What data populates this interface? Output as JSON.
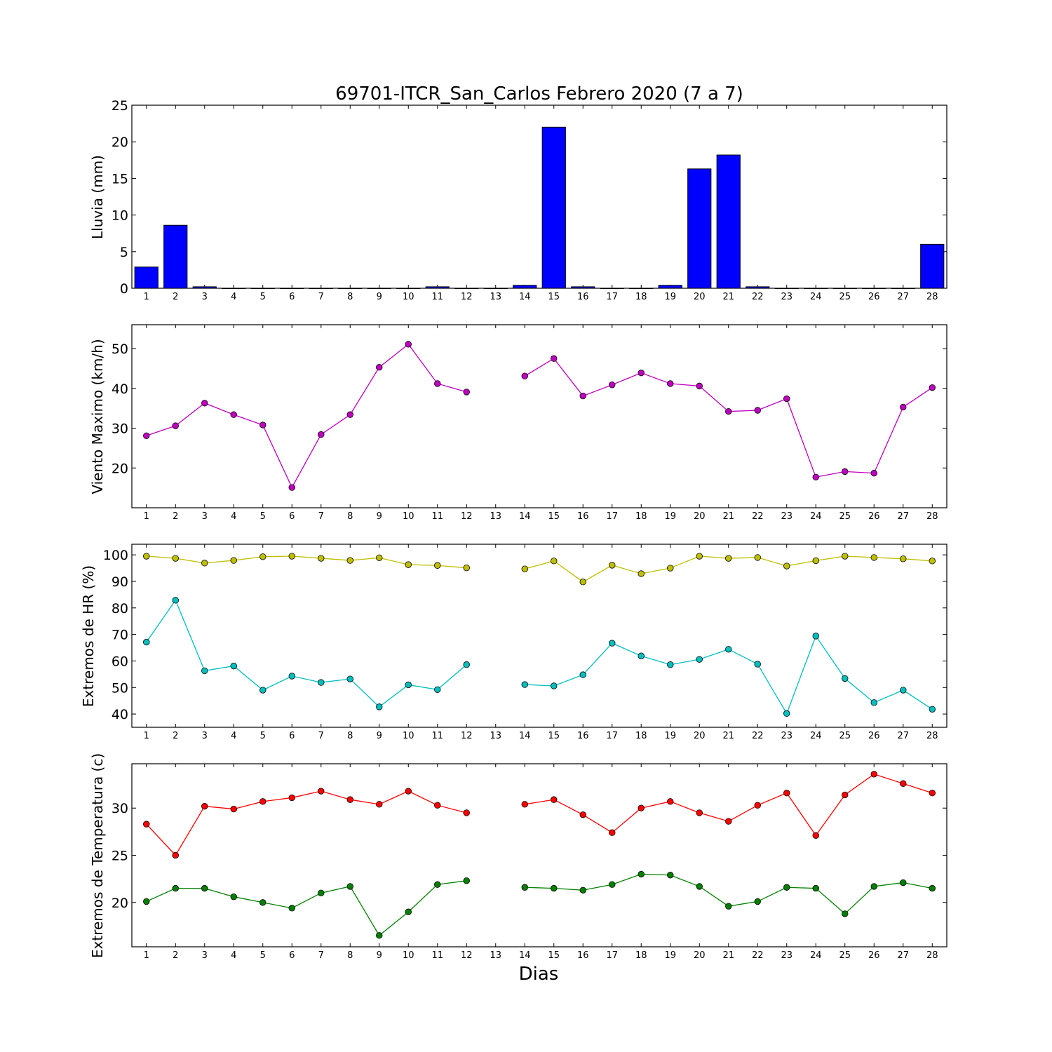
{
  "title": "69701-ITCR_San_Carlos Febrero 2020  (7 a 7)",
  "xlabel": "Dias",
  "chart_data": [
    {
      "type": "bar",
      "ylabel": "Lluvia (mm)",
      "x": [
        1,
        2,
        3,
        4,
        5,
        6,
        7,
        8,
        9,
        10,
        11,
        12,
        13,
        14,
        15,
        16,
        17,
        18,
        19,
        20,
        21,
        22,
        23,
        24,
        25,
        26,
        27,
        28
      ],
      "ylim": [
        0,
        25
      ],
      "yticks": [
        0,
        5,
        10,
        15,
        20,
        25
      ],
      "color": "#0000ff",
      "values": [
        2.9,
        8.6,
        0.2,
        0,
        0,
        0,
        0,
        0,
        0,
        0,
        0.2,
        0,
        0,
        0.4,
        22.0,
        0.2,
        0,
        0,
        0.4,
        16.3,
        18.2,
        0.2,
        0,
        0,
        0,
        0,
        0,
        6.0
      ]
    },
    {
      "type": "line",
      "ylabel": "Viento Maximo (km/h)",
      "x": [
        1,
        2,
        3,
        4,
        5,
        6,
        7,
        8,
        9,
        10,
        11,
        12,
        13,
        14,
        15,
        16,
        17,
        18,
        19,
        20,
        21,
        22,
        23,
        24,
        25,
        26,
        27,
        28
      ],
      "ylim": [
        10,
        56
      ],
      "yticks": [
        20,
        30,
        40,
        50
      ],
      "series": [
        {
          "color": "#bf00bf",
          "values": [
            28.1,
            30.6,
            36.3,
            33.4,
            30.8,
            15.1,
            28.4,
            33.4,
            45.3,
            51.1,
            41.2,
            39.1,
            null,
            43.1,
            47.5,
            38.1,
            40.9,
            43.9,
            41.2,
            40.6,
            34.2,
            34.5,
            37.4,
            17.7,
            19.1,
            18.7,
            35.3,
            40.2
          ]
        }
      ]
    },
    {
      "type": "line",
      "ylabel": "Extremos de HR (%)",
      "x": [
        1,
        2,
        3,
        4,
        5,
        6,
        7,
        8,
        9,
        10,
        11,
        12,
        13,
        14,
        15,
        16,
        17,
        18,
        19,
        20,
        21,
        22,
        23,
        24,
        25,
        26,
        27,
        28
      ],
      "ylim": [
        35,
        104
      ],
      "yticks": [
        40,
        50,
        60,
        70,
        80,
        90,
        100
      ],
      "series": [
        {
          "color": "#bfbf00",
          "values": [
            99.5,
            98.7,
            96.9,
            97.9,
            99.3,
            99.5,
            98.7,
            97.9,
            98.9,
            96.3,
            96.0,
            95.1,
            null,
            94.7,
            97.7,
            89.8,
            96.1,
            92.9,
            95.0,
            99.5,
            98.7,
            99.0,
            95.8,
            97.8,
            99.5,
            99.0,
            98.5,
            97.7
          ]
        },
        {
          "color": "#00bfbf",
          "values": [
            67.1,
            82.9,
            56.3,
            58.1,
            49.0,
            54.3,
            51.9,
            53.2,
            42.7,
            51.0,
            49.2,
            58.6,
            null,
            51.1,
            50.6,
            54.8,
            66.7,
            61.9,
            58.6,
            60.6,
            64.4,
            58.8,
            40.2,
            69.4,
            53.4,
            44.3,
            49.0,
            41.8
          ]
        }
      ]
    },
    {
      "type": "line",
      "ylabel": "Extremos de Temperatura (c)",
      "x": [
        1,
        2,
        3,
        4,
        5,
        6,
        7,
        8,
        9,
        10,
        11,
        12,
        13,
        14,
        15,
        16,
        17,
        18,
        19,
        20,
        21,
        22,
        23,
        24,
        25,
        26,
        27,
        28
      ],
      "ylim": [
        15.3,
        34.7
      ],
      "yticks": [
        20,
        25,
        30
      ],
      "series": [
        {
          "color": "#ff0000",
          "values": [
            28.3,
            25.0,
            30.2,
            29.9,
            30.7,
            31.1,
            31.8,
            30.9,
            30.4,
            31.8,
            30.3,
            29.5,
            null,
            30.4,
            30.9,
            29.3,
            27.4,
            30.0,
            30.7,
            29.5,
            28.6,
            30.3,
            31.6,
            27.1,
            31.4,
            33.6,
            32.6,
            31.6
          ]
        },
        {
          "color": "#008000",
          "values": [
            20.1,
            21.5,
            21.5,
            20.6,
            20.0,
            19.4,
            21.0,
            21.7,
            16.5,
            19.0,
            21.9,
            22.3,
            null,
            21.6,
            21.5,
            21.3,
            21.9,
            23.0,
            22.9,
            21.7,
            19.6,
            20.1,
            21.6,
            21.5,
            18.8,
            21.7,
            22.1,
            21.5
          ]
        }
      ]
    }
  ]
}
